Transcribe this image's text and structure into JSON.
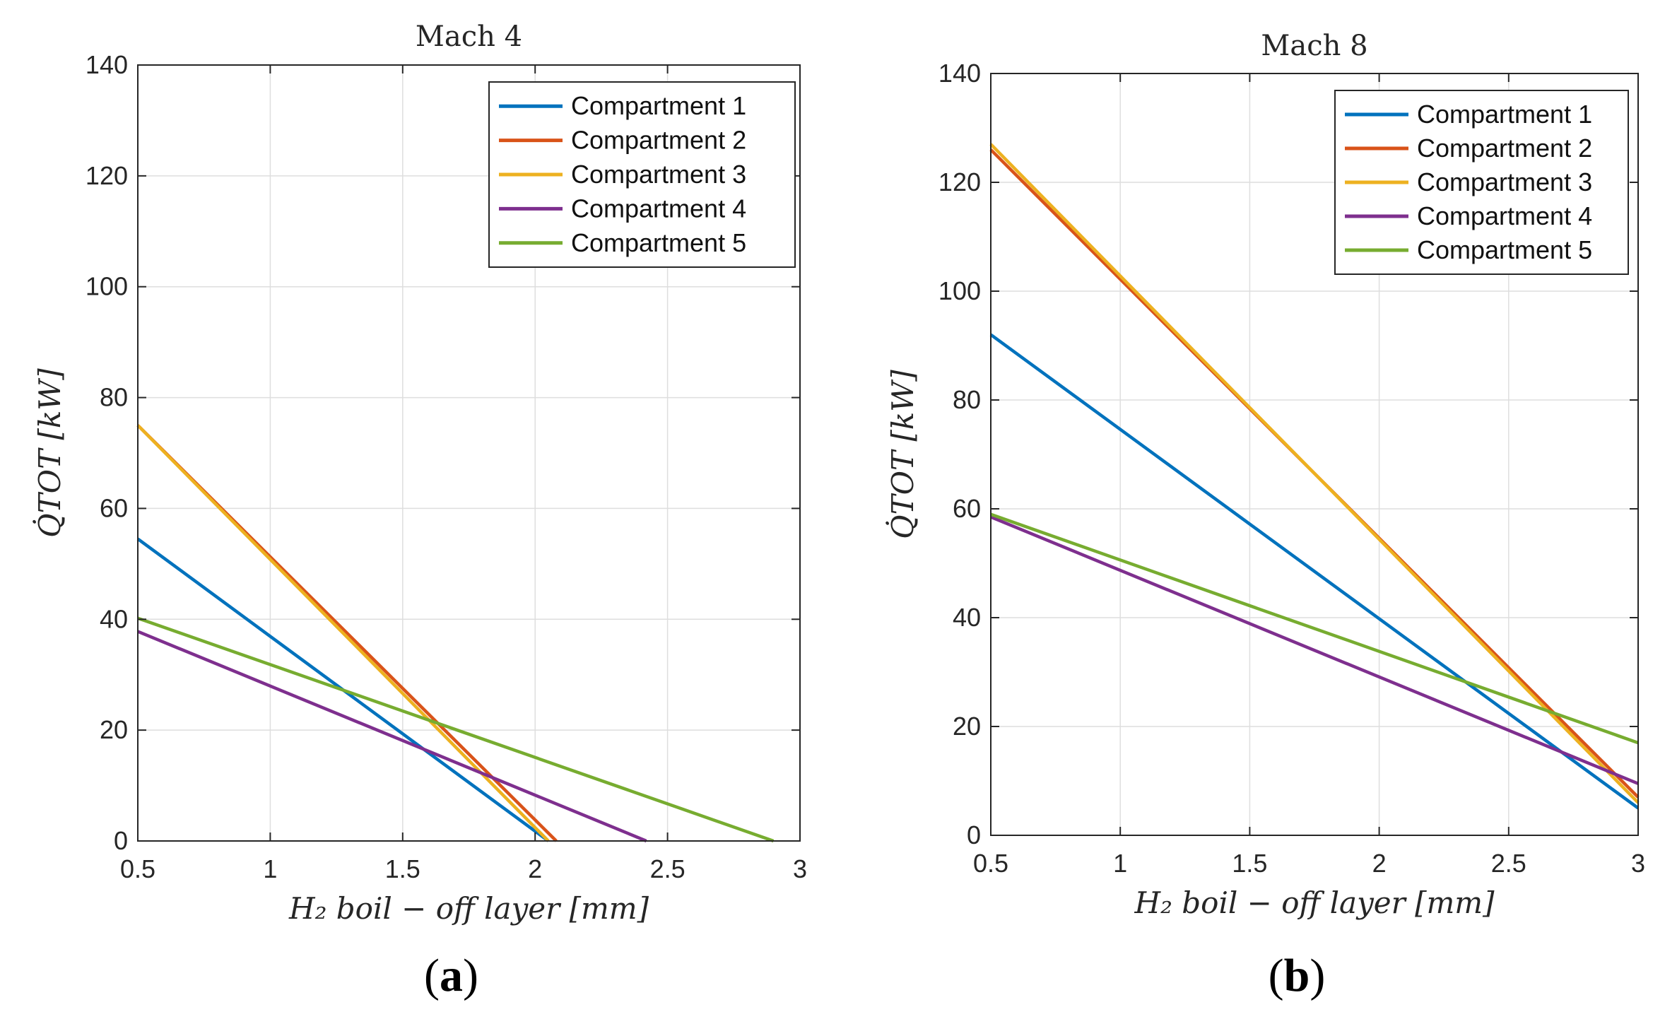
{
  "chart_data": [
    {
      "type": "line",
      "title": "Mach 4",
      "panel_label": {
        "open": "(",
        "letter": "a",
        "close": ")"
      },
      "xlabel": "H₂ boil − off layer [mm]",
      "ylabel": "Q̇TOT [kW]",
      "xlim": [
        0.5,
        3
      ],
      "ylim": [
        0,
        140
      ],
      "xticks": [
        0.5,
        1,
        1.5,
        2,
        2.5,
        3
      ],
      "xtick_labels": [
        "0.5",
        "1",
        "1.5",
        "2",
        "2.5",
        "3"
      ],
      "yticks": [
        0,
        20,
        40,
        60,
        80,
        100,
        120,
        140
      ],
      "ytick_labels": [
        "0",
        "20",
        "40",
        "60",
        "80",
        "100",
        "120",
        "140"
      ],
      "grid": true,
      "legend_position": "top-right",
      "series": [
        {
          "name": "Compartment 1",
          "color": "#0072BD",
          "x": [
            0.5,
            2.05
          ],
          "y": [
            54.5,
            0
          ]
        },
        {
          "name": "Compartment 2",
          "color": "#D95319",
          "x": [
            0.5,
            2.08
          ],
          "y": [
            75,
            0
          ]
        },
        {
          "name": "Compartment 3",
          "color": "#EDB120",
          "x": [
            0.5,
            2.05
          ],
          "y": [
            75,
            0
          ]
        },
        {
          "name": "Compartment 4",
          "color": "#7E2F8E",
          "x": [
            0.5,
            2.42
          ],
          "y": [
            37.8,
            0
          ]
        },
        {
          "name": "Compartment 5",
          "color": "#77AC30",
          "x": [
            0.5,
            2.9
          ],
          "y": [
            40.2,
            0
          ]
        }
      ]
    },
    {
      "type": "line",
      "title": "Mach 8",
      "panel_label": {
        "open": "(",
        "letter": "b",
        "close": ")"
      },
      "xlabel": "H₂ boil − off layer [mm]",
      "ylabel": "Q̇TOT [kW]",
      "xlim": [
        0.5,
        3
      ],
      "ylim": [
        0,
        140
      ],
      "xticks": [
        0.5,
        1,
        1.5,
        2,
        2.5,
        3
      ],
      "xtick_labels": [
        "0.5",
        "1",
        "1.5",
        "2",
        "2.5",
        "3"
      ],
      "yticks": [
        0,
        20,
        40,
        60,
        80,
        100,
        120,
        140
      ],
      "ytick_labels": [
        "0",
        "20",
        "40",
        "60",
        "80",
        "100",
        "120",
        "140"
      ],
      "grid": true,
      "legend_position": "top-right",
      "series": [
        {
          "name": "Compartment 1",
          "color": "#0072BD",
          "x": [
            0.5,
            3
          ],
          "y": [
            92,
            5
          ]
        },
        {
          "name": "Compartment 2",
          "color": "#D95319",
          "x": [
            0.5,
            3
          ],
          "y": [
            126,
            7
          ]
        },
        {
          "name": "Compartment 3",
          "color": "#EDB120",
          "x": [
            0.5,
            3
          ],
          "y": [
            127,
            6
          ]
        },
        {
          "name": "Compartment 4",
          "color": "#7E2F8E",
          "x": [
            0.5,
            3
          ],
          "y": [
            58.5,
            9.5
          ]
        },
        {
          "name": "Compartment 5",
          "color": "#77AC30",
          "x": [
            0.5,
            3
          ],
          "y": [
            59,
            17
          ]
        }
      ]
    }
  ]
}
